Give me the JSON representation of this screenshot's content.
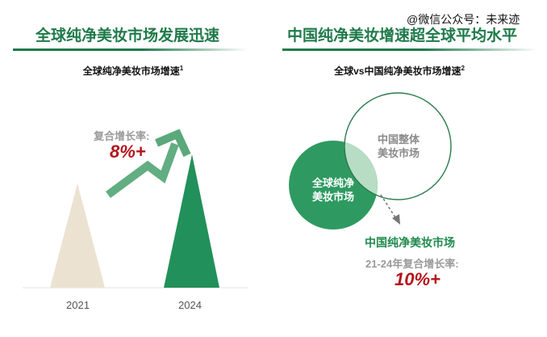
{
  "watermark": "@微信公众号：未来迹",
  "left": {
    "title": "全球纯净美妆市场发展迅速",
    "subtitle": "全球纯净美妆市场增速",
    "subtitle_sup": "1",
    "cagr_label": "复合增长率:",
    "cagr_value": "8%+",
    "chart_data": {
      "type": "bar",
      "categories": [
        "2021",
        "2024"
      ],
      "title": "全球纯净美妆市场增速",
      "colors": [
        "#ece2d2",
        "#22905a"
      ]
    }
  },
  "right": {
    "title": "中国纯净美妆增速超全球平均水平",
    "subtitle": "全球vs中国纯净美妆市场增速",
    "subtitle_sup": "2",
    "china_overall_line1": "中国整体",
    "china_overall_line2": "美妆市场",
    "global_clean_line1": "全球纯净",
    "global_clean_line2": "美妆市场",
    "china_clean_label": "中国纯净美妆市场",
    "cagr_label": "21-24年复合增长率:",
    "cagr_value": "10%+"
  },
  "colors": {
    "accent": "#1f7a4a",
    "highlight": "#b3141c",
    "green": "#2e9a61"
  }
}
